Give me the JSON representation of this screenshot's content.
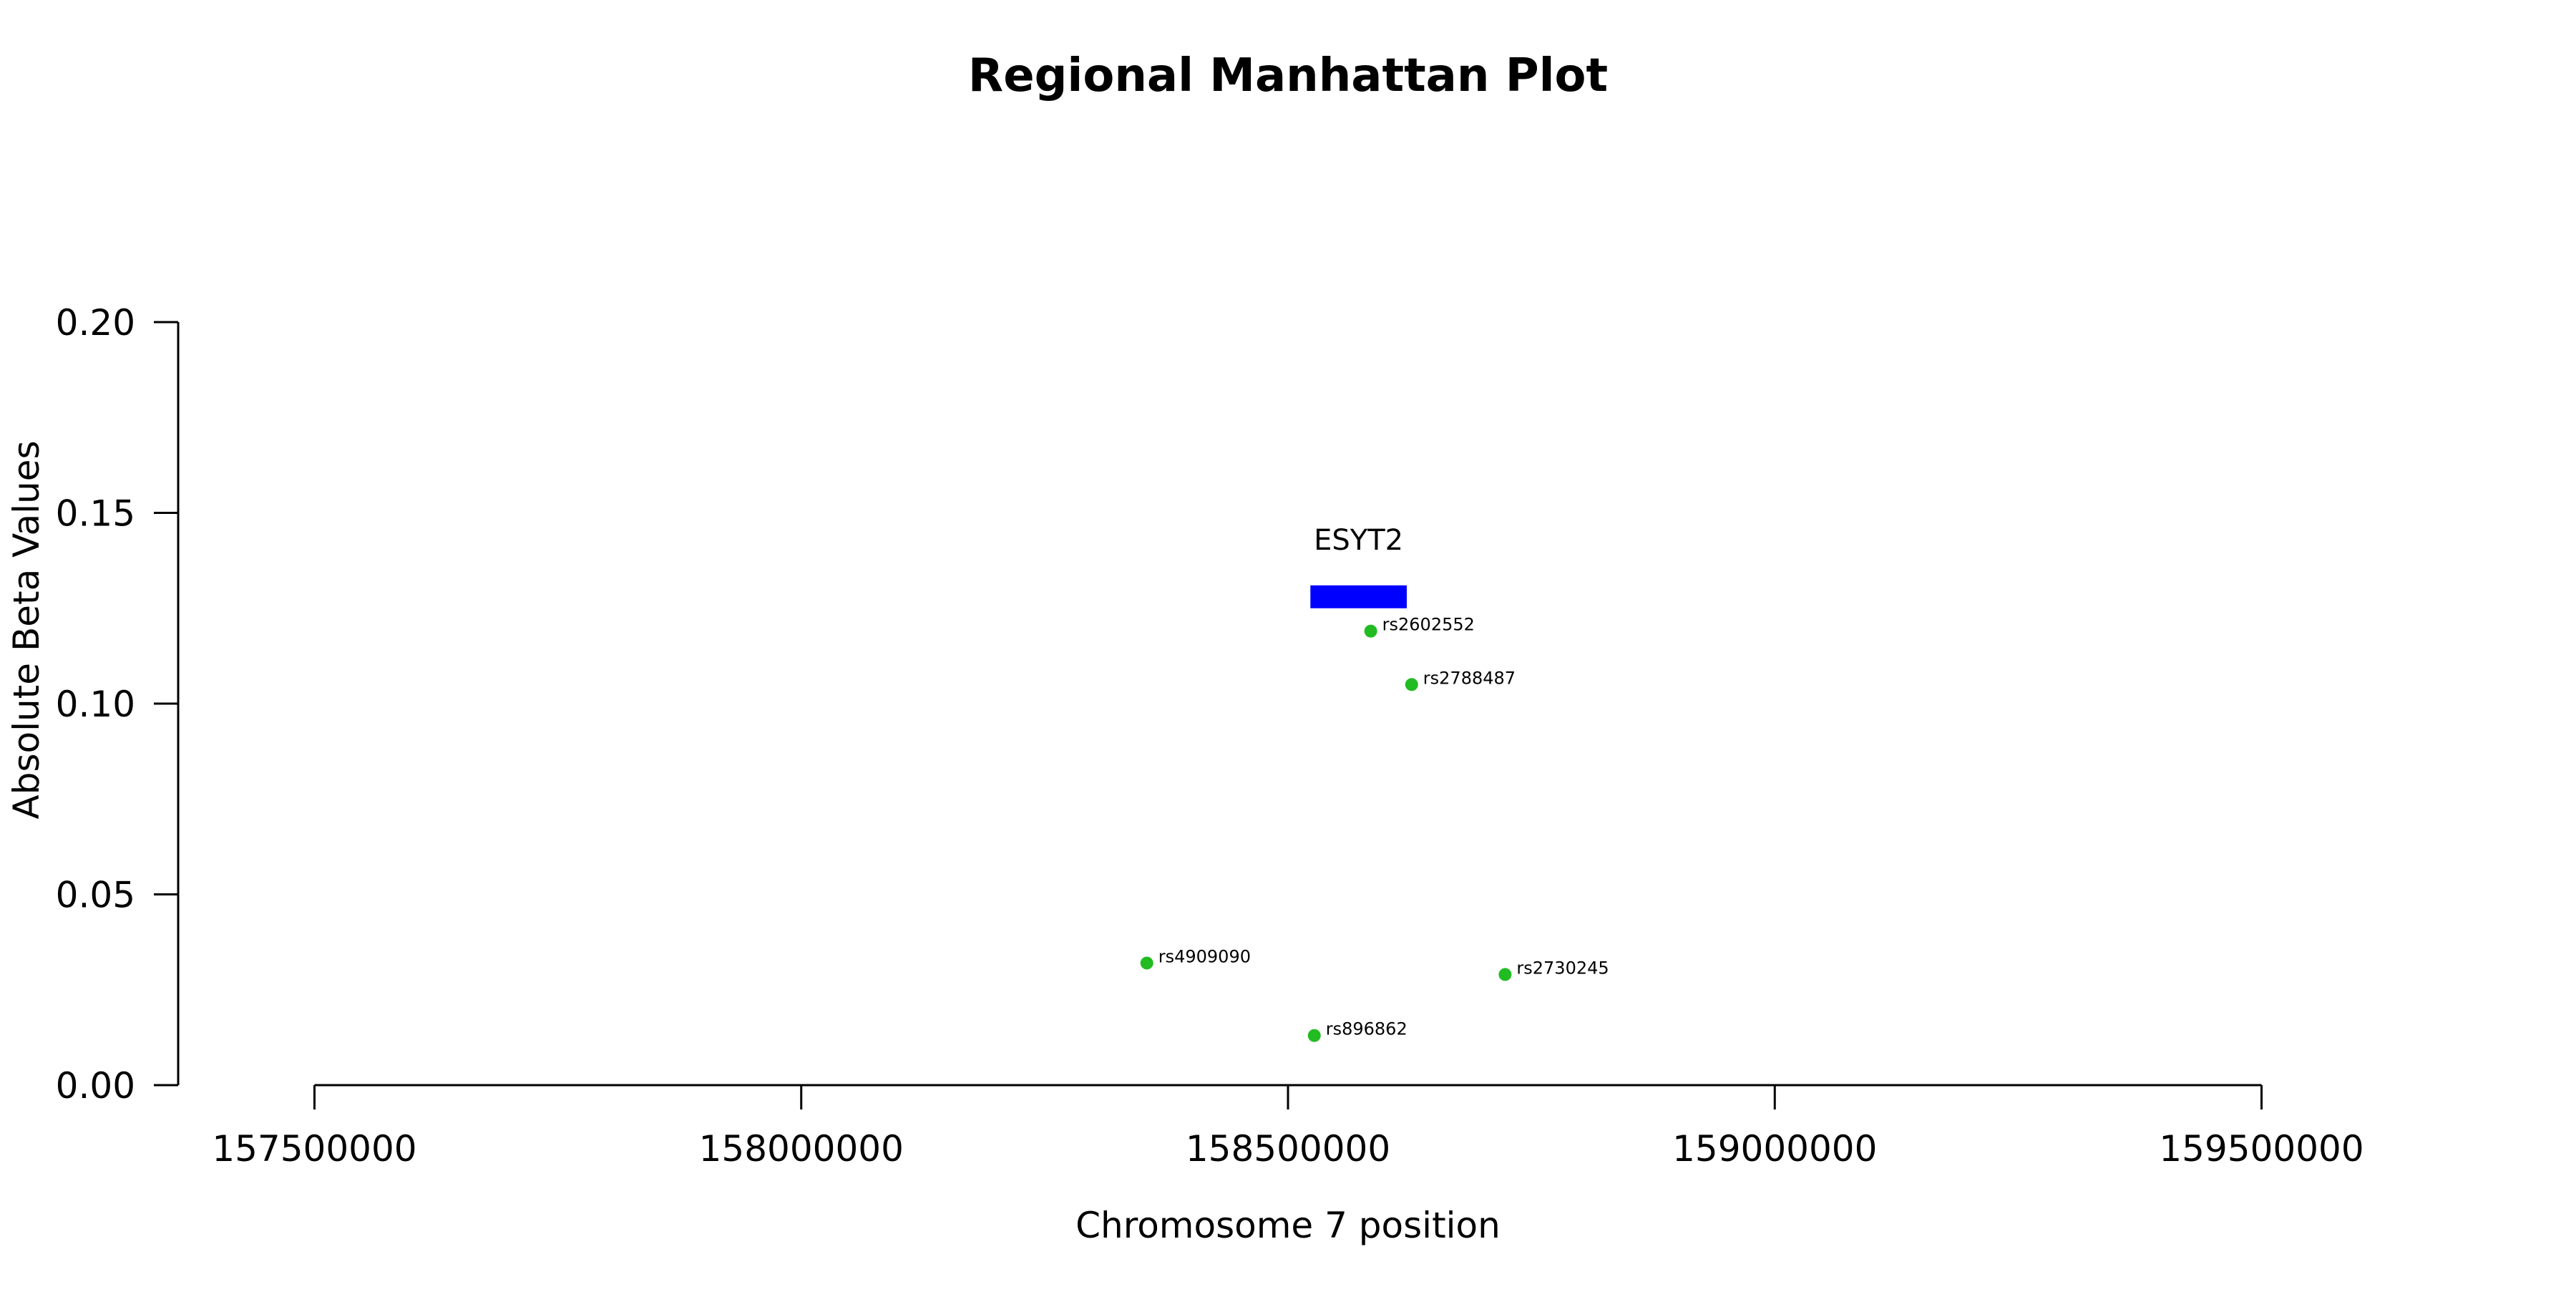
{
  "chart_data": {
    "type": "scatter",
    "title": "Regional Manhattan Plot",
    "xlabel": "Chromosome 7 position",
    "ylabel": "Absolute Beta Values",
    "xlim": [
      157360000,
      159640000
    ],
    "ylim": [
      0,
      0.2
    ],
    "x_ticks": [
      157500000,
      158000000,
      158500000,
      159000000,
      159500000
    ],
    "y_ticks": [
      "0.00",
      "0.05",
      "0.10",
      "0.15",
      "0.20"
    ],
    "grid": false,
    "point_color": "#22bb22",
    "gene_color": "#0000ff",
    "genes": [
      {
        "name": "ESYT2",
        "start": 158523000,
        "end": 158622000,
        "y": 0.128
      }
    ],
    "points": [
      {
        "label": "rs2602552",
        "x": 158585000,
        "y": 0.119
      },
      {
        "label": "rs2788487",
        "x": 158627000,
        "y": 0.105
      },
      {
        "label": "rs4909090",
        "x": 158355000,
        "y": 0.032
      },
      {
        "label": "rs2730245",
        "x": 158723000,
        "y": 0.029
      },
      {
        "label": "rs896862",
        "x": 158527000,
        "y": 0.013
      }
    ]
  }
}
